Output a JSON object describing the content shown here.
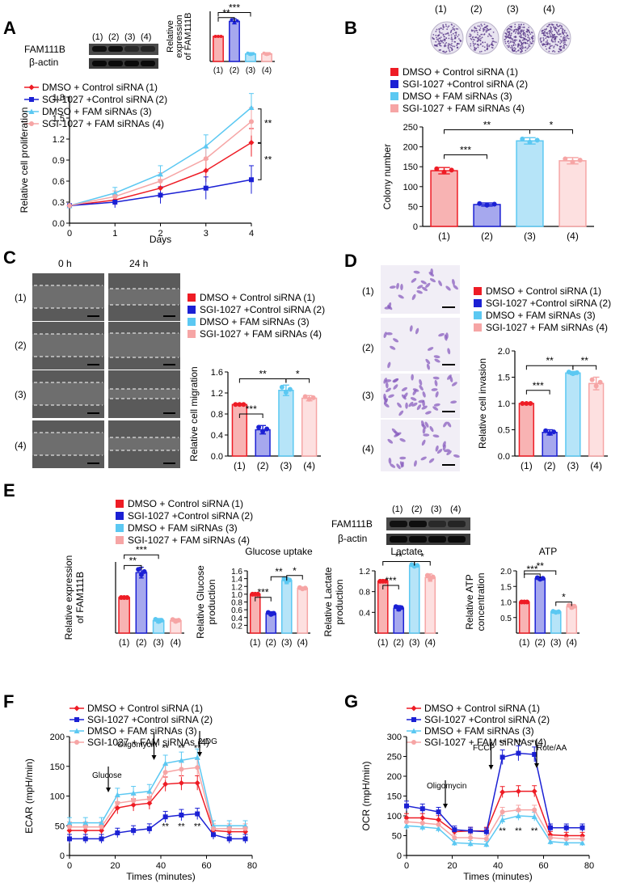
{
  "colors": {
    "red": "#ee1c25",
    "blue": "#1b20d4",
    "cyan": "#5bc8f2",
    "pink": "#f6a5a5",
    "red_fill": "#f8b3b3",
    "blue_fill": "#a6a8ee",
    "cyan_fill": "#b6e4f8",
    "pink_fill": "#fde0e0"
  },
  "panels": {
    "A": "A",
    "B": "B",
    "C": "C",
    "D": "D",
    "E": "E",
    "F": "F",
    "G": "G"
  },
  "legend": {
    "full": [
      "DMSO + Control siRNA (1)",
      "SGI-1027 +Control siRNA (2)",
      "DMSO + FAM siRNAs (3)",
      "SGI-1027 + FAM siRNAs (4)"
    ],
    "panel_d": [
      "DMSO + Control siRNA (1)",
      "SGI-1027 +Control siRNA (2)",
      "DMSO + FAM siRNAs (3)",
      "SGI-1027 + FAM siRNAs (4)"
    ]
  },
  "groups": [
    "(1)",
    "(2)",
    "(3)",
    "(4)"
  ],
  "sig": {
    "s1": "*",
    "s2": "**",
    "s3": "***"
  },
  "blots": {
    "fam": "FAM111B",
    "actin": "β-actin"
  },
  "wound": {
    "t0": "0 h",
    "t24": "24 h"
  },
  "chart_data": [
    {
      "id": "A_bar",
      "type": "bar",
      "ylabel": "Relative expression of FAM111B",
      "ylabel_lines": [
        "Relative",
        "expression",
        "of FAM111B"
      ],
      "categories": [
        "(1)",
        "(2)",
        "(3)",
        "(4)"
      ],
      "values": [
        1.0,
        1.6,
        0.3,
        0.3
      ],
      "errors": [
        0.0,
        0.1,
        0.05,
        0.05
      ],
      "ylim": [
        0,
        2
      ],
      "yticks": []
    },
    {
      "id": "A_line",
      "type": "line",
      "xlabel": "Days",
      "ylabel": "Relative cell proliferation",
      "x": [
        0,
        1,
        2,
        3,
        4
      ],
      "ylim": [
        0,
        1.8
      ],
      "yticks": [
        0,
        0.3,
        0.6,
        0.9,
        1.2,
        1.5,
        1.8
      ],
      "xticks": [
        0,
        1,
        2,
        3,
        4
      ],
      "series": [
        {
          "name": "DMSO + Control siRNA (1)",
          "values": [
            0.25,
            0.33,
            0.5,
            0.75,
            1.15
          ]
        },
        {
          "name": "SGI-1027 +Control siRNA (2)",
          "values": [
            0.25,
            0.3,
            0.4,
            0.5,
            0.62
          ]
        },
        {
          "name": "DMSO + FAM siRNAs (3)",
          "values": [
            0.25,
            0.43,
            0.7,
            1.1,
            1.65
          ]
        },
        {
          "name": "SGI-1027 + FAM siRNAs (4)",
          "values": [
            0.25,
            0.38,
            0.6,
            0.92,
            1.45
          ]
        }
      ]
    },
    {
      "id": "B_bar",
      "type": "bar",
      "ylabel": "Colony number",
      "categories": [
        "(1)",
        "(2)",
        "(3)",
        "(4)"
      ],
      "values": [
        140,
        55,
        215,
        165
      ],
      "errors": [
        8,
        4,
        8,
        8
      ],
      "ylim": [
        0,
        250
      ],
      "yticks": [
        0,
        50,
        100,
        150,
        200,
        250
      ]
    },
    {
      "id": "C_bar",
      "type": "bar",
      "ylabel": "Relative cell migration",
      "categories": [
        "(1)",
        "(2)",
        "(3)",
        "(4)"
      ],
      "values": [
        0.98,
        0.5,
        1.25,
        1.1
      ],
      "errors": [
        0.0,
        0.08,
        0.1,
        0.05
      ],
      "ylim": [
        0,
        1.6
      ],
      "yticks": [
        0,
        0.4,
        0.8,
        1.2,
        1.6
      ]
    },
    {
      "id": "D_bar",
      "type": "bar",
      "ylabel": "Relative cell invasion",
      "categories": [
        "(1)",
        "(2)",
        "(3)",
        "(4)"
      ],
      "values": [
        1.0,
        0.45,
        1.58,
        1.38
      ],
      "errors": [
        0.0,
        0.05,
        0.03,
        0.12
      ],
      "ylim": [
        0,
        2
      ],
      "yticks": [
        0,
        0.5,
        1.0,
        1.5,
        2.0
      ]
    },
    {
      "id": "E_expr",
      "type": "bar",
      "ylabel": "Relative expression of FAM111B",
      "ylabel_lines": [
        "Relative expression",
        "of FAM111B"
      ],
      "categories": [
        "(1)",
        "(2)",
        "(3)",
        "(4)"
      ],
      "values": [
        1.0,
        1.7,
        0.35,
        0.35
      ],
      "errors": [
        0.0,
        0.15,
        0.06,
        0.05
      ],
      "ylim": [
        0,
        2
      ],
      "yticks": []
    },
    {
      "id": "E_glu",
      "type": "bar",
      "title": "Glucose uptake",
      "ylabel": "Relative Glucose production",
      "ylabel_lines": [
        "Relative Glucose",
        "production"
      ],
      "categories": [
        "(1)",
        "(2)",
        "(3)",
        "(4)"
      ],
      "values": [
        1.0,
        0.5,
        1.35,
        1.15
      ],
      "errors": [
        0.0,
        0.05,
        0.08,
        0.03
      ],
      "ylim": [
        0,
        1.6
      ],
      "yticks": [
        0.2,
        0.4,
        0.6,
        0.8,
        1.0,
        1.2,
        1.4,
        1.6
      ],
      "ytick_labels": [
        "0.2",
        "0.4",
        "0.6",
        "0.8",
        "1.0",
        "1.2",
        "1.4",
        "1.6"
      ],
      "ytick_shown": [
        "0.2",
        "0.4",
        "0.6",
        "0.8",
        "1.0",
        "1.2",
        "1.4",
        "1.6"
      ]
    },
    {
      "id": "E_lac",
      "type": "bar",
      "title": "Lactate",
      "ylabel": "Relative Lactate production",
      "ylabel_lines": [
        "Relative Lactate",
        "production"
      ],
      "categories": [
        "(1)",
        "(2)",
        "(3)",
        "(4)"
      ],
      "values": [
        1.0,
        0.48,
        1.3,
        1.07
      ],
      "errors": [
        0.0,
        0.05,
        0.03,
        0.07
      ],
      "ylim": [
        0,
        1.2
      ],
      "yticks": [
        0.4,
        0.8,
        1.2
      ],
      "ytick_labels": [
        "0.4",
        "0.8",
        "1.2"
      ]
    },
    {
      "id": "E_atp",
      "type": "bar",
      "title": "ATP",
      "ylabel": "Relative ATP concentration",
      "ylabel_lines": [
        "Relative ATP",
        "concentration"
      ],
      "categories": [
        "(1)",
        "(2)",
        "(3)",
        "(4)"
      ],
      "values": [
        1.0,
        1.75,
        0.68,
        0.85
      ],
      "errors": [
        0.0,
        0.05,
        0.03,
        0.07
      ],
      "ylim": [
        0,
        2
      ],
      "yticks": [
        0.5,
        1.0,
        1.5,
        2.0
      ],
      "ytick_labels": [
        "0.5",
        "1.0",
        "1.5",
        "2.0"
      ]
    },
    {
      "id": "F_line",
      "type": "line",
      "xlabel": "Times (minutes)",
      "ylabel": "ECAR (mpH/min)",
      "x": [
        0,
        7,
        14,
        21,
        28,
        35,
        42,
        49,
        56,
        63,
        70,
        77
      ],
      "xticks": [
        0,
        20,
        40,
        60,
        80
      ],
      "ylim": [
        0,
        200
      ],
      "yticks": [
        0,
        50,
        100,
        150,
        200
      ],
      "annotations": [
        "Glucose",
        "Oligomycin",
        "2-DG"
      ],
      "series": [
        {
          "name": "DMSO + Control siRNA (1)",
          "values": [
            42,
            42,
            42,
            80,
            85,
            88,
            120,
            122,
            122,
            42,
            40,
            40
          ]
        },
        {
          "name": "SGI-1027 +Control siRNA (2)",
          "values": [
            28,
            28,
            28,
            38,
            42,
            45,
            65,
            68,
            70,
            35,
            28,
            28
          ]
        },
        {
          "name": "DMSO + FAM siRNAs (3)",
          "values": [
            55,
            55,
            55,
            102,
            105,
            108,
            155,
            160,
            165,
            50,
            50,
            50
          ]
        },
        {
          "name": "SGI-1027 + FAM siRNAs (4)",
          "values": [
            48,
            48,
            48,
            88,
            92,
            95,
            140,
            145,
            148,
            45,
            45,
            45
          ]
        }
      ]
    },
    {
      "id": "G_line",
      "type": "line",
      "xlabel": "Times (minutes)",
      "ylabel": "OCR (mpH/min)",
      "x": [
        0,
        7,
        14,
        21,
        28,
        35,
        42,
        49,
        56,
        63,
        70,
        77
      ],
      "xticks": [
        0,
        20,
        40,
        60,
        80
      ],
      "ylim": [
        0,
        300
      ],
      "yticks": [
        0,
        50,
        100,
        150,
        200,
        250,
        300
      ],
      "annotations": [
        "Oligomycin",
        "FCCP",
        "Rote/AA"
      ],
      "series": [
        {
          "name": "DMSO + Control siRNA (1)",
          "values": [
            95,
            95,
            90,
            60,
            62,
            62,
            160,
            162,
            162,
            52,
            50,
            50
          ]
        },
        {
          "name": "SGI-1027 +Control siRNA (2)",
          "values": [
            125,
            118,
            110,
            65,
            62,
            60,
            248,
            258,
            255,
            70,
            70,
            70
          ]
        },
        {
          "name": "DMSO + FAM siRNAs (3)",
          "values": [
            75,
            72,
            68,
            32,
            30,
            28,
            90,
            100,
            98,
            35,
            32,
            32
          ]
        },
        {
          "name": "SGI-1027 + FAM siRNAs (4)",
          "values": [
            85,
            82,
            78,
            45,
            45,
            42,
            110,
            115,
            115,
            45,
            42,
            42
          ]
        }
      ]
    }
  ]
}
